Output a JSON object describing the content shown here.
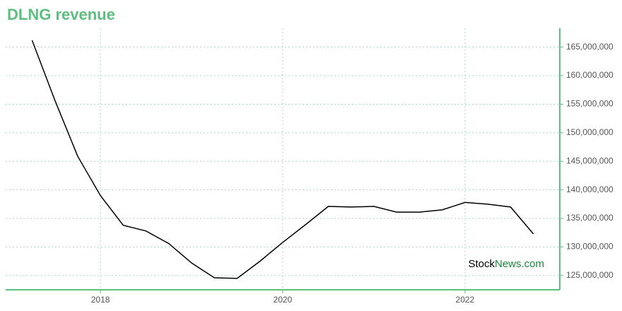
{
  "chart_data": {
    "type": "line",
    "title": "DLNG revenue",
    "x": [
      2017.25,
      2017.5,
      2017.75,
      2018,
      2018.25,
      2018.5,
      2018.75,
      2019,
      2019.25,
      2019.5,
      2019.75,
      2020,
      2020.25,
      2020.5,
      2020.75,
      2021,
      2021.25,
      2021.5,
      2021.75,
      2022,
      2022.25,
      2022.5,
      2022.75
    ],
    "series": [
      {
        "name": "revenue",
        "color": "#000000",
        "values": [
          166200000,
          155700000,
          145900000,
          139000000,
          133800000,
          132800000,
          130600000,
          127200000,
          124600000,
          124500000,
          127500000,
          130800000,
          133900000,
          137100000,
          137000000,
          137100000,
          136100000,
          136100000,
          136500000,
          137800000,
          137500000,
          137000000,
          132300000
        ]
      }
    ],
    "xlim": [
      2016.96,
      2023.04
    ],
    "xticks": [
      2018,
      2020,
      2022
    ],
    "ylim": [
      122500000,
      168300000
    ],
    "yticks": [
      {
        "value": 125000000,
        "label": "125,000,000"
      },
      {
        "value": 130000000,
        "label": "130,000,000"
      },
      {
        "value": 135000000,
        "label": "135,000,000"
      },
      {
        "value": 140000000,
        "label": "140,000,000"
      },
      {
        "value": 145000000,
        "label": "145,000,000"
      },
      {
        "value": 150000000,
        "label": "150,000,000"
      },
      {
        "value": 155000000,
        "label": "155,000,000"
      },
      {
        "value": 160000000,
        "label": "160,000,000"
      },
      {
        "value": 165000000,
        "label": "165,000,000"
      }
    ],
    "grid": true,
    "axis_color": "#5cbf7f",
    "watermark": {
      "prefix": "Stock",
      "suffix": "News.com"
    }
  }
}
